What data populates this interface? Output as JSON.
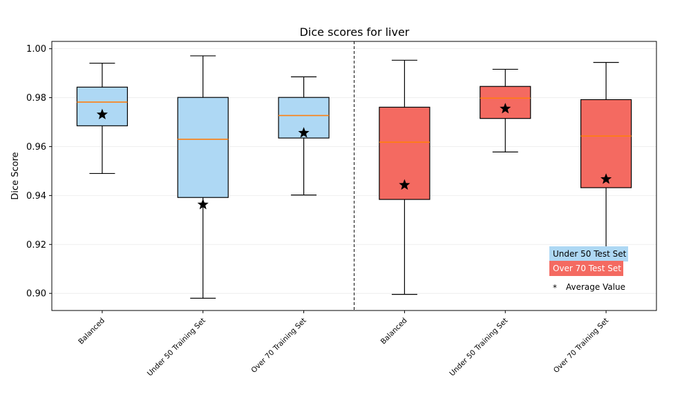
{
  "chart_data": {
    "type": "box",
    "title": "Dice scores for liver",
    "xlabel": "",
    "ylabel": "Dice Score",
    "ylim": [
      0.893,
      1.003
    ],
    "yticks": [
      "0.90",
      "0.92",
      "0.94",
      "0.96",
      "0.98",
      "1.00"
    ],
    "ytick_values": [
      0.9,
      0.92,
      0.94,
      0.96,
      0.98,
      1.0
    ],
    "grid": "horizontal-faint",
    "groups": [
      {
        "label": "Balanced",
        "series": "Under 50 Test Set",
        "whisker_low": 0.949,
        "q1": 0.9685,
        "median": 0.9782,
        "q3": 0.9843,
        "whisker_high": 0.9941,
        "mean": 0.9731
      },
      {
        "label": "Under 50 Training Set",
        "series": "Under 50 Test Set",
        "whisker_low": 0.898,
        "q1": 0.9392,
        "median": 0.963,
        "q3": 0.9801,
        "whisker_high": 0.9971,
        "mean": 0.9363
      },
      {
        "label": "Over 70 Training Set",
        "series": "Under 50 Test Set",
        "whisker_low": 0.9402,
        "q1": 0.9635,
        "median": 0.9727,
        "q3": 0.9801,
        "whisker_high": 0.9885,
        "mean": 0.9656
      },
      {
        "label": "Balanced",
        "series": "Over 70 Test Set",
        "whisker_low": 0.8996,
        "q1": 0.9384,
        "median": 0.9618,
        "q3": 0.9761,
        "whisker_high": 0.9953,
        "mean": 0.9443
      },
      {
        "label": "Under 50 Training Set",
        "series": "Over 70 Test Set",
        "whisker_low": 0.9578,
        "q1": 0.9715,
        "median": 0.9798,
        "q3": 0.9846,
        "whisker_high": 0.9916,
        "mean": 0.9755
      },
      {
        "label": "Over 70 Training Set",
        "series": "Over 70 Test Set",
        "whisker_low": 0.9182,
        "q1": 0.9432,
        "median": 0.9643,
        "q3": 0.9792,
        "whisker_high": 0.9944,
        "mean": 0.9467
      }
    ],
    "series": [
      {
        "name": "Under 50 Test Set",
        "color": "#aed8f4"
      },
      {
        "name": "Over 70 Test Set",
        "color": "#f46a61"
      }
    ],
    "legend": {
      "placement": "lower-right",
      "items": [
        "Under 50 Test Set",
        "Over 70 Test Set"
      ],
      "mean_marker": "*",
      "mean_label": "Average Value"
    },
    "median_color": "#ff7f0e",
    "mean_marker_color": "#000000",
    "divider": "dashed vertical line between the two test sets"
  }
}
